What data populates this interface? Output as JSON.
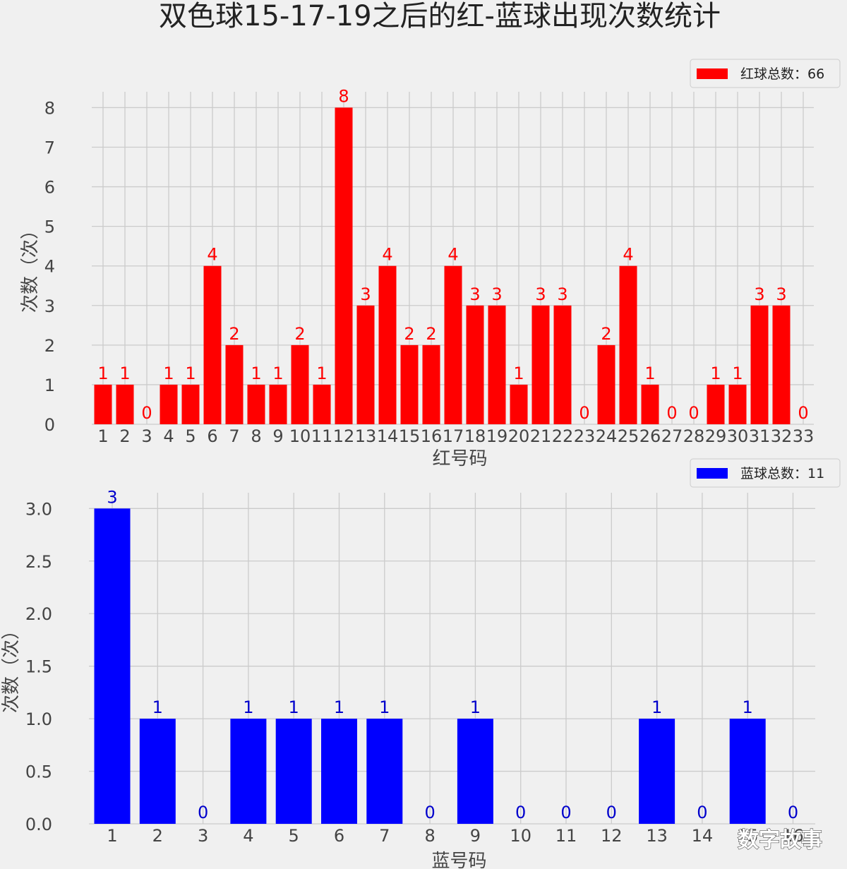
{
  "figure": {
    "title": "双色球15-17-19之后的红-蓝球出现次数统计",
    "watermark": "数字故事"
  },
  "chart_data": [
    {
      "type": "bar",
      "xlabel": "红号码",
      "ylabel": "次数（次）",
      "categories": [
        "1",
        "2",
        "3",
        "4",
        "5",
        "6",
        "7",
        "8",
        "9",
        "10",
        "11",
        "12",
        "13",
        "14",
        "15",
        "16",
        "17",
        "18",
        "19",
        "20",
        "21",
        "22",
        "23",
        "24",
        "25",
        "26",
        "27",
        "28",
        "29",
        "30",
        "31",
        "32",
        "33"
      ],
      "values": [
        1,
        1,
        0,
        1,
        1,
        4,
        2,
        1,
        1,
        2,
        1,
        8,
        3,
        4,
        2,
        2,
        4,
        3,
        3,
        1,
        3,
        3,
        0,
        2,
        4,
        1,
        0,
        0,
        1,
        1,
        3,
        3,
        0
      ],
      "ylim": [
        0,
        8.4
      ],
      "yticks": [
        "0",
        "1",
        "2",
        "3",
        "4",
        "5",
        "6",
        "7",
        "8"
      ],
      "legend": "红球总数：66",
      "legend_position": "top-right",
      "grid": true,
      "color": "#ff0000",
      "label_color": "#ff0000"
    },
    {
      "type": "bar",
      "xlabel": "蓝号码",
      "ylabel": "次数（次）",
      "categories": [
        "1",
        "2",
        "3",
        "4",
        "5",
        "6",
        "7",
        "8",
        "9",
        "10",
        "11",
        "12",
        "13",
        "14",
        "15",
        "16"
      ],
      "values": [
        3,
        1,
        0,
        1,
        1,
        1,
        1,
        0,
        1,
        0,
        0,
        0,
        1,
        0,
        1,
        0
      ],
      "ylim": [
        0,
        3.15
      ],
      "yticks": [
        "0.0",
        "0.5",
        "1.0",
        "1.5",
        "2.0",
        "2.5",
        "3.0"
      ],
      "legend": "蓝球总数：11",
      "legend_position": "top-right",
      "grid": true,
      "color": "#0000ff",
      "label_color": "#0000cc"
    }
  ]
}
